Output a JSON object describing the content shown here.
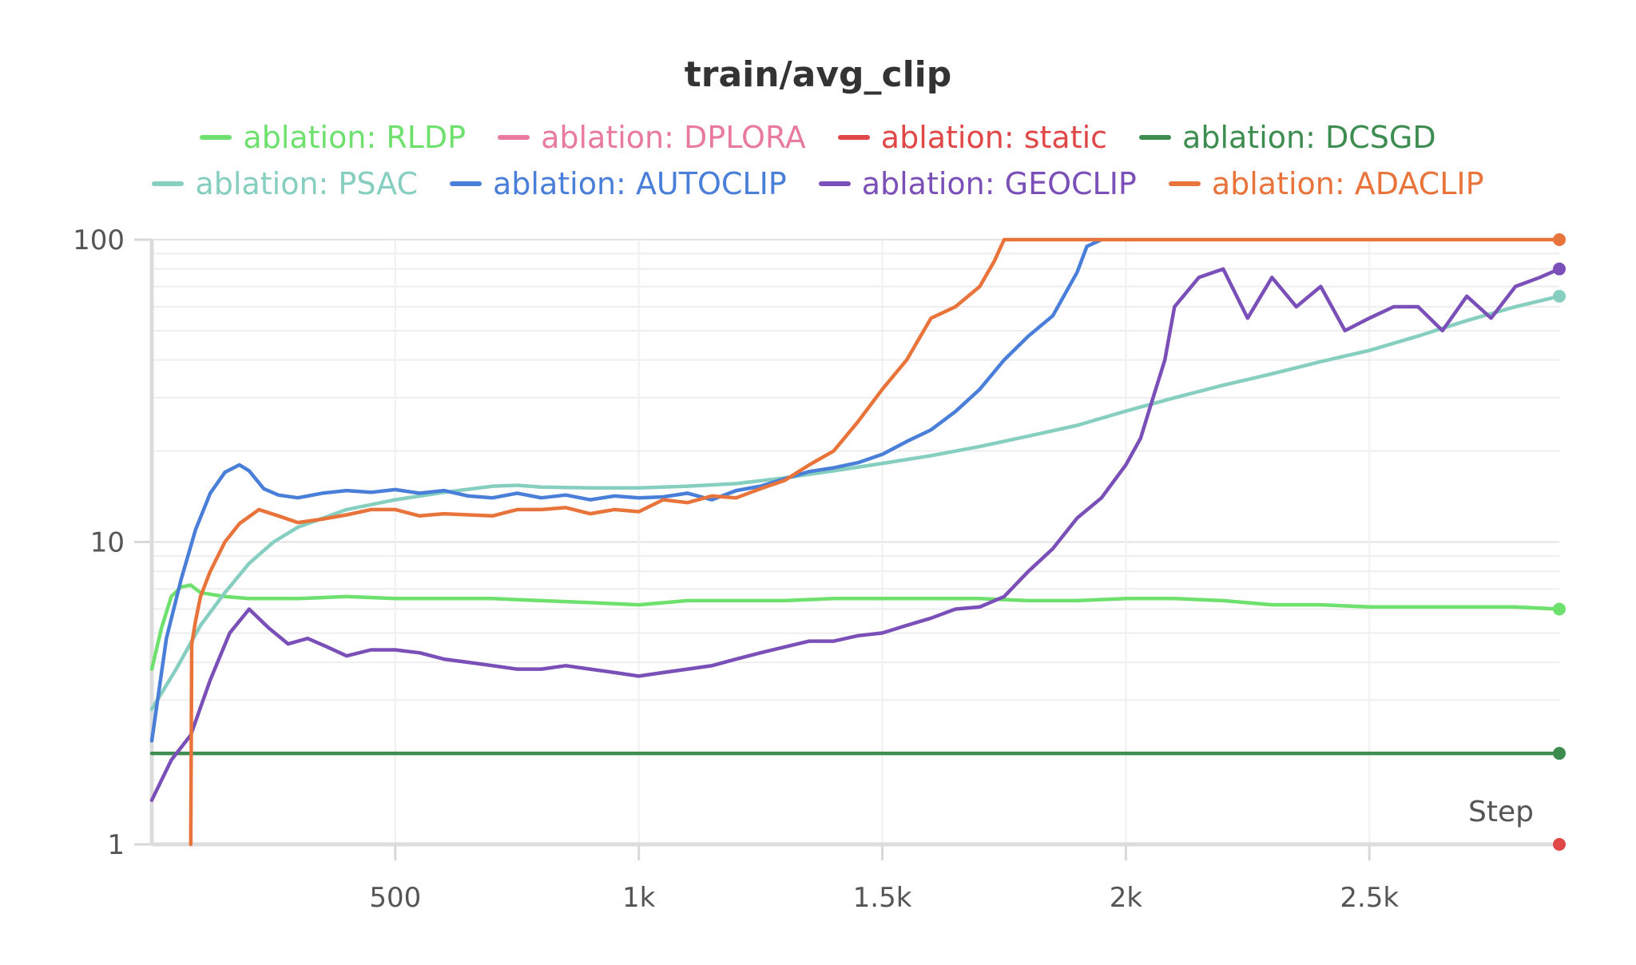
{
  "chart_data": {
    "type": "line",
    "title": "train/avg_clip",
    "xlabel": "Step",
    "ylabel": "",
    "yscale": "log",
    "xlim": [
      0,
      2890
    ],
    "ylim": [
      1,
      100
    ],
    "x_ticks": [
      {
        "value": 500,
        "label": "500"
      },
      {
        "value": 1000,
        "label": "1k"
      },
      {
        "value": 1500,
        "label": "1.5k"
      },
      {
        "value": 2000,
        "label": "2k"
      },
      {
        "value": 2500,
        "label": "2.5k"
      }
    ],
    "y_ticks": [
      {
        "value": 1,
        "label": "1"
      },
      {
        "value": 10,
        "label": "10"
      },
      {
        "value": 100,
        "label": "100"
      }
    ],
    "grid": true,
    "legend_position": "top-center",
    "series": [
      {
        "name": "ablation: RLDP",
        "color": "#6ee06e",
        "x": [
          0,
          20,
          40,
          60,
          80,
          100,
          150,
          200,
          300,
          400,
          500,
          600,
          700,
          800,
          900,
          1000,
          1100,
          1200,
          1300,
          1400,
          1500,
          1600,
          1700,
          1800,
          1900,
          2000,
          2100,
          2200,
          2300,
          2400,
          2500,
          2600,
          2700,
          2800,
          2890
        ],
        "y": [
          3.8,
          5.2,
          6.6,
          7.1,
          7.2,
          6.8,
          6.6,
          6.5,
          6.5,
          6.6,
          6.5,
          6.5,
          6.5,
          6.4,
          6.3,
          6.2,
          6.4,
          6.4,
          6.4,
          6.5,
          6.5,
          6.5,
          6.5,
          6.4,
          6.4,
          6.5,
          6.5,
          6.4,
          6.2,
          6.2,
          6.1,
          6.1,
          6.1,
          6.1,
          6.0
        ]
      },
      {
        "name": "ablation: DPLORA",
        "color": "#e87aa0",
        "x": [],
        "y": []
      },
      {
        "name": "ablation: static",
        "color": "#e04848",
        "x": [
          2890
        ],
        "y": [
          1.0
        ]
      },
      {
        "name": "ablation: DCSGD",
        "color": "#3d8c50",
        "x": [
          0,
          2890
        ],
        "y": [
          2.0,
          2.0
        ]
      },
      {
        "name": "ablation: PSAC",
        "color": "#86cfc0",
        "x": [
          0,
          50,
          100,
          150,
          200,
          250,
          300,
          400,
          500,
          600,
          700,
          750,
          800,
          900,
          1000,
          1100,
          1200,
          1300,
          1400,
          1500,
          1600,
          1700,
          1800,
          1900,
          2000,
          2100,
          2200,
          2300,
          2400,
          2500,
          2600,
          2700,
          2800,
          2890
        ],
        "y": [
          2.8,
          3.8,
          5.3,
          6.8,
          8.5,
          10.0,
          11.2,
          12.8,
          13.8,
          14.6,
          15.3,
          15.4,
          15.2,
          15.1,
          15.1,
          15.3,
          15.6,
          16.3,
          17.2,
          18.2,
          19.3,
          20.7,
          22.4,
          24.3,
          27.1,
          30.0,
          33.0,
          36.0,
          39.5,
          43.0,
          48.0,
          54.0,
          60.0,
          65.0
        ]
      },
      {
        "name": "ablation: AUTOCLIP",
        "color": "#4a7fd9",
        "x": [
          0,
          30,
          60,
          90,
          120,
          150,
          180,
          200,
          230,
          260,
          300,
          350,
          400,
          450,
          500,
          550,
          600,
          650,
          700,
          750,
          800,
          850,
          900,
          950,
          1000,
          1050,
          1100,
          1150,
          1200,
          1250,
          1300,
          1350,
          1400,
          1450,
          1500,
          1550,
          1600,
          1650,
          1700,
          1750,
          1800,
          1850,
          1900,
          1920,
          1950
        ],
        "y": [
          2.2,
          4.8,
          7.5,
          11.0,
          14.5,
          17.0,
          18.0,
          17.2,
          15.0,
          14.3,
          14.0,
          14.5,
          14.8,
          14.6,
          14.9,
          14.5,
          14.8,
          14.2,
          14.0,
          14.5,
          14.0,
          14.3,
          13.8,
          14.2,
          14.0,
          14.1,
          14.5,
          13.8,
          14.8,
          15.3,
          16.2,
          17.1,
          17.6,
          18.3,
          19.5,
          21.5,
          23.5,
          27.0,
          32.0,
          40.0,
          48.0,
          56.0,
          78.0,
          95.0,
          100.0
        ]
      },
      {
        "name": "ablation: GEOCLIP",
        "color": "#7b4fb8",
        "x": [
          0,
          40,
          80,
          120,
          160,
          200,
          240,
          280,
          320,
          360,
          400,
          450,
          500,
          550,
          600,
          650,
          700,
          750,
          800,
          850,
          900,
          950,
          1000,
          1050,
          1100,
          1150,
          1200,
          1250,
          1300,
          1350,
          1400,
          1450,
          1500,
          1550,
          1600,
          1650,
          1700,
          1750,
          1800,
          1850,
          1900,
          1950,
          2000,
          2030,
          2050,
          2080,
          2100,
          2150,
          2200,
          2250,
          2300,
          2350,
          2400,
          2450,
          2500,
          2550,
          2600,
          2650,
          2700,
          2750,
          2800,
          2850,
          2890
        ],
        "y": [
          1.4,
          1.9,
          2.3,
          3.5,
          5.0,
          6.0,
          5.2,
          4.6,
          4.8,
          4.5,
          4.2,
          4.4,
          4.4,
          4.3,
          4.1,
          4.0,
          3.9,
          3.8,
          3.8,
          3.9,
          3.8,
          3.7,
          3.6,
          3.7,
          3.8,
          3.9,
          4.1,
          4.3,
          4.5,
          4.7,
          4.7,
          4.9,
          5.0,
          5.3,
          5.6,
          6.0,
          6.1,
          6.6,
          8.0,
          9.5,
          12.0,
          14.0,
          18.0,
          22.0,
          28.0,
          40.0,
          60.0,
          75.0,
          80.0,
          55.0,
          75.0,
          60.0,
          70.0,
          50.0,
          55.0,
          60.0,
          60.0,
          50.0,
          65.0,
          55.0,
          70.0,
          75.0,
          80.0
        ]
      },
      {
        "name": "ablation: ADACLIP",
        "color": "#e8743b",
        "x": [
          80,
          82,
          90,
          100,
          120,
          150,
          180,
          220,
          260,
          300,
          350,
          400,
          450,
          500,
          550,
          600,
          650,
          700,
          750,
          800,
          850,
          900,
          950,
          1000,
          1050,
          1100,
          1150,
          1200,
          1250,
          1300,
          1350,
          1400,
          1450,
          1500,
          1550,
          1600,
          1650,
          1700,
          1730,
          1750,
          2890
        ],
        "y": [
          1.0,
          4.6,
          5.5,
          6.6,
          8.0,
          10.0,
          11.5,
          12.8,
          12.2,
          11.6,
          11.9,
          12.3,
          12.8,
          12.8,
          12.2,
          12.4,
          12.3,
          12.2,
          12.8,
          12.8,
          13.0,
          12.4,
          12.8,
          12.6,
          13.8,
          13.5,
          14.2,
          14.0,
          15.0,
          16.0,
          18.0,
          20.0,
          25.0,
          32.0,
          40.0,
          55.0,
          60.0,
          70.0,
          85.0,
          100.0,
          100.0
        ]
      }
    ]
  }
}
